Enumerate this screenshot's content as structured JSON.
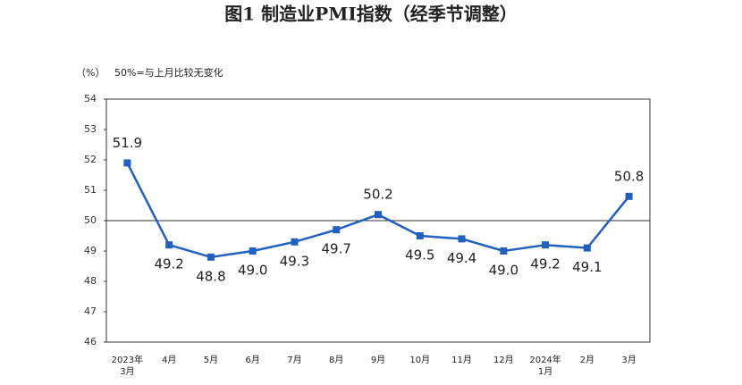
{
  "chart_data": {
    "type": "line",
    "title": "图1  制造业PMI指数（经季节调整）",
    "unit_label": "（%）",
    "annotation": "50%=与上月比较无变化",
    "categories": [
      "2023年3月",
      "4月",
      "5月",
      "6月",
      "7月",
      "8月",
      "9月",
      "10月",
      "11月",
      "12月",
      "2024年1月",
      "2月",
      "3月"
    ],
    "series": [
      {
        "name": "制造业PMI",
        "color": "#2060c0",
        "values": [
          51.9,
          49.2,
          48.8,
          49.0,
          49.3,
          49.7,
          50.2,
          49.5,
          49.4,
          49.0,
          49.2,
          49.1,
          50.8
        ],
        "value_labels": [
          "51.9",
          "49.2",
          "48.8",
          "49.0",
          "49.3",
          "49.7",
          "50.2",
          "49.5",
          "49.4",
          "49.0",
          "49.2",
          "49.1",
          "50.8"
        ]
      }
    ],
    "reference_line": 50,
    "ylim": [
      46,
      54
    ],
    "yticks": [
      46,
      47,
      48,
      49,
      50,
      51,
      52,
      53,
      54
    ]
  }
}
